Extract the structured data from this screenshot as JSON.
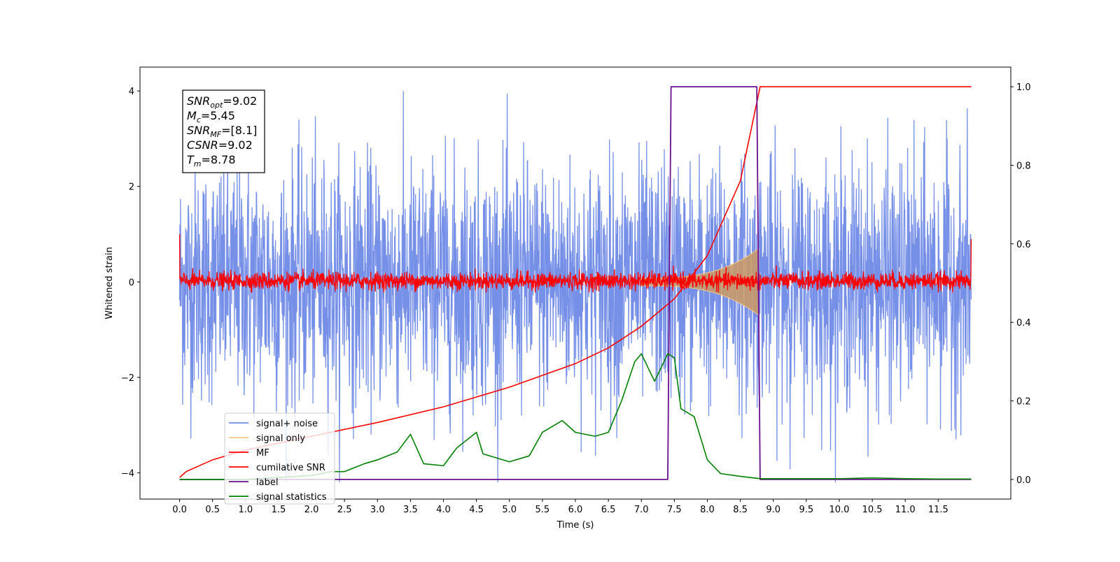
{
  "chart_data": {
    "type": "line",
    "xlabel": "Time (s)",
    "ylabel": "Whitened strain",
    "x_range": [
      -0.6,
      12.6
    ],
    "xlim": [
      0,
      12
    ],
    "ylim_left": [
      -4.55,
      4.5
    ],
    "ylim_right": [
      -0.05,
      1.05
    ],
    "x_ticks": [
      "0.0",
      "0.5",
      "1.0",
      "1.5",
      "2.0",
      "2.5",
      "3.0",
      "3.5",
      "4.0",
      "4.5",
      "5.0",
      "5.5",
      "6.0",
      "6.5",
      "7.0",
      "7.5",
      "8.0",
      "8.5",
      "9.0",
      "9.5",
      "10.0",
      "10.5",
      "11.0",
      "11.5"
    ],
    "y_ticks_left": [
      "4",
      "2",
      "0",
      "−2",
      "−4"
    ],
    "y_ticks_right": [
      "1.0",
      "0.8",
      "0.6",
      "0.4",
      "0.2",
      "0.0"
    ],
    "annotation": {
      "lines": [
        {
          "var": "SNR",
          "sub": "opt",
          "rest": "=9.02"
        },
        {
          "var": "M",
          "sub": "c",
          "rest": "=5.45"
        },
        {
          "var": "SNR",
          "sub": "MF",
          "rest": "=[8.1]"
        },
        {
          "var": "CSNR",
          "sub": "",
          "rest": "=9.02"
        },
        {
          "var": "T",
          "sub": "m",
          "rest": "=8.78"
        }
      ]
    },
    "legend": {
      "placement": "lower-left",
      "entries": [
        {
          "label": "signal+ noise",
          "color": "#6f8ae6"
        },
        {
          "label": "signal only",
          "color": "#f5c883"
        },
        {
          "label": "MF",
          "color": "#ff0000"
        },
        {
          "label": "cumilative SNR",
          "color": "#ff0000"
        },
        {
          "label": "label",
          "color": "#6a0f8e"
        },
        {
          "label": "signal statistics",
          "color": "#008000"
        }
      ]
    },
    "series": [
      {
        "name": "signal+ noise",
        "axis": "left",
        "kind": "noise_band",
        "approx_lower": -2.5,
        "approx_upper": 2.5,
        "approx_peaks": [
          3.9,
          -4.1
        ]
      },
      {
        "name": "signal only",
        "axis": "left",
        "kind": "chirp_envelope",
        "start": 7.0,
        "end": 8.78,
        "max_amplitude": 0.7
      },
      {
        "name": "MF",
        "axis": "left",
        "kind": "noise_band",
        "approx_lower": -0.2,
        "approx_upper": 0.3
      },
      {
        "name": "cumilative SNR",
        "axis": "right",
        "x": [
          0.0,
          0.1,
          0.5,
          1.0,
          2.0,
          3.0,
          4.0,
          5.0,
          6.0,
          6.5,
          7.0,
          7.5,
          8.0,
          8.5,
          8.8,
          12.0
        ],
        "y": [
          0.005,
          0.02,
          0.05,
          0.075,
          0.11,
          0.145,
          0.185,
          0.235,
          0.295,
          0.335,
          0.39,
          0.46,
          0.57,
          0.76,
          1.0,
          1.0
        ]
      },
      {
        "name": "label",
        "axis": "right",
        "x": [
          0.0,
          7.4,
          7.45,
          8.75,
          8.8,
          12.0
        ],
        "y": [
          0.0,
          0.0,
          1.0,
          1.0,
          0.0,
          0.0
        ]
      },
      {
        "name": "signal statistics",
        "axis": "right",
        "x": [
          0.0,
          1.0,
          2.0,
          2.3,
          2.5,
          2.8,
          3.0,
          3.3,
          3.5,
          3.7,
          4.0,
          4.2,
          4.5,
          4.6,
          5.0,
          5.3,
          5.5,
          5.8,
          6.0,
          6.3,
          6.5,
          6.7,
          6.9,
          7.0,
          7.2,
          7.4,
          7.5,
          7.6,
          7.8,
          8.0,
          8.2,
          8.5,
          8.8,
          9.5,
          10.0,
          10.5,
          11.0,
          11.5,
          12.0
        ],
        "y": [
          0.0,
          0.0,
          0.01,
          0.02,
          0.02,
          0.04,
          0.05,
          0.07,
          0.115,
          0.04,
          0.035,
          0.08,
          0.12,
          0.065,
          0.045,
          0.06,
          0.12,
          0.15,
          0.12,
          0.11,
          0.12,
          0.2,
          0.3,
          0.32,
          0.25,
          0.32,
          0.31,
          0.18,
          0.16,
          0.05,
          0.015,
          0.008,
          0.002,
          0.002,
          0.002,
          0.004,
          0.002,
          0.001,
          0.001
        ]
      }
    ]
  }
}
